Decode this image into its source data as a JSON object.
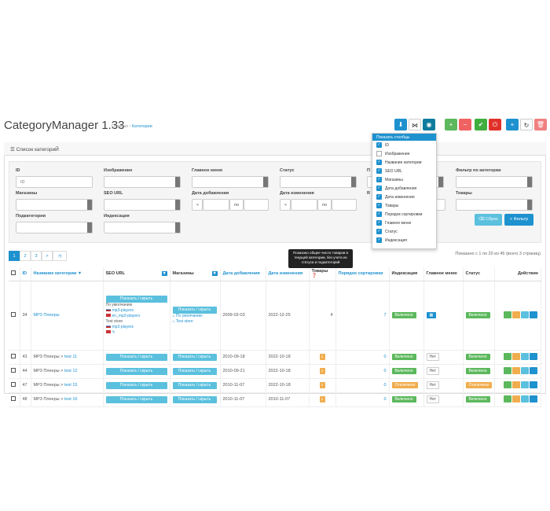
{
  "page": {
    "title": "CategoryManager 1.33",
    "crumb_home": "Главная",
    "crumb_sep": "›",
    "crumb_current": "Категории"
  },
  "toolbar": {
    "colors": {
      "blue": "#1e91cf",
      "green": "#5cb85c",
      "red": "#d9534f",
      "teal": "#0f7c9e"
    }
  },
  "panel": {
    "heading": "Список категориЙ",
    "list_icon": "list-icon"
  },
  "filters": {
    "id_label": "ID",
    "id_placeholder": "ID",
    "image_label": "Изображение",
    "main_menu_label": "Главное меню",
    "status_label": "Статус",
    "filter_cat_label": "Фильтр по категории",
    "stores_label": "Магазины",
    "seo_label": "SEO URL",
    "date_added_label": "Дата добавления",
    "date_modified_label": "Дата изменения",
    "products_label": "Товары",
    "subcat_label": "Подкатегории",
    "index_label": "Индексация",
    "lt": "<",
    "by": "по",
    "gt": ">",
    "reset_btn": "Сброс",
    "filter_btn": "Фильтр",
    "cut1": "П",
    "cut2": "R"
  },
  "pagination": {
    "pages": [
      "1",
      "2",
      "3",
      ">",
      ">|"
    ],
    "info": "Показано с 1 по 20 из 45 (всего 3 страниц)"
  },
  "tooltip": "Показано общее число товаров в текущей категории, без учета их статуса и подкатегорий",
  "columns_menu": {
    "header": "Показать столбцы",
    "items": [
      {
        "label": "ID",
        "checked": true
      },
      {
        "label": "Изображение",
        "checked": false
      },
      {
        "label": "Название категории",
        "checked": true
      },
      {
        "label": "SEO URL",
        "checked": true
      },
      {
        "label": "Магазины",
        "checked": true
      },
      {
        "label": "Дата добавления",
        "checked": true
      },
      {
        "label": "Дата изменения",
        "checked": true
      },
      {
        "label": "Товары",
        "checked": true
      },
      {
        "label": "Порядок сортировки",
        "checked": true
      },
      {
        "label": "Главное меню",
        "checked": true
      },
      {
        "label": "Статус",
        "checked": true
      },
      {
        "label": "Индексация",
        "checked": true
      }
    ]
  },
  "table": {
    "headers": {
      "id": "ID",
      "name": "Название категории ▼",
      "seo": "SEO URL",
      "stores": "Магазины",
      "added": "Дата добавления",
      "modified": "Дата изменения",
      "products": "Товары",
      "sort": "Порядок сортировки",
      "index": "Индексация",
      "menu": "Главное меню",
      "status": "Статус",
      "action": "Действие"
    },
    "show_hide": "Показать / скрыть",
    "first_row": {
      "id": "34",
      "name": "MP3 Плееры",
      "seo_default": "По умолчанию",
      "seo_url1": "mp3-players",
      "seo_url2": "en_mp3-players",
      "seo_store": "Test store",
      "seo_url3": "mp3-players",
      "store_default": "По умолчанию",
      "store_test": "Test store",
      "added": "2009-02-03",
      "modified": "2022-12-25",
      "products": "4",
      "sort": "7",
      "index": "Включено",
      "status": "Включено"
    },
    "rows": [
      {
        "id": "43",
        "parent": "MP3 Плееры",
        "sep": " > ",
        "name": "test 11",
        "added": "2010-09-18",
        "modified": "2022-10-18",
        "products": "0",
        "sort": "0",
        "index": "Включено",
        "menu": "Нет",
        "status": "Включено",
        "off": false
      },
      {
        "id": "44",
        "parent": "MP3 Плееры",
        "sep": " > ",
        "name": "test 12",
        "added": "2010-09-21",
        "modified": "2022-10-18",
        "products": "0",
        "sort": "0",
        "index": "Включено",
        "menu": "Нет",
        "status": "Включено",
        "off": false
      },
      {
        "id": "47",
        "parent": "MP3 Плееры",
        "sep": " > ",
        "name": "test 15",
        "added": "2010-11-07",
        "modified": "2022-10-18",
        "products": "0",
        "sort": "0",
        "index": "Отключено",
        "menu": "Нет",
        "status": "Отключено",
        "off": true
      },
      {
        "id": "48",
        "parent": "MP3 Плееры",
        "sep": " > ",
        "name": "test 16",
        "added": "2010-11-07",
        "modified": "2010-11-07",
        "products": "0",
        "sort": "0",
        "index": "Включено",
        "menu": "Нет",
        "status": "Включено",
        "off": false
      }
    ]
  }
}
